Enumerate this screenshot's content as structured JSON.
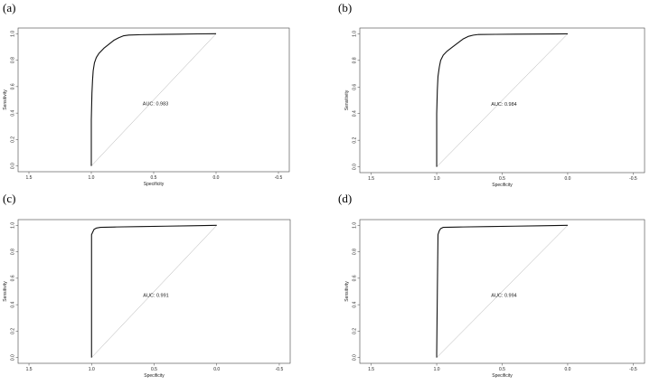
{
  "chart_data": [
    {
      "panel": "(a)",
      "type": "line",
      "xlabel": "Specificity",
      "ylabel": "Sensitivity",
      "xlim": [
        1.5,
        -0.5
      ],
      "ylim": [
        0.0,
        1.0
      ],
      "xticks": [
        "1.5",
        "1.0",
        "0.5",
        "0.0",
        "-0.5"
      ],
      "yticks": [
        "0.0",
        "0.2",
        "0.4",
        "0.6",
        "0.8",
        "1.0"
      ],
      "annotation": "AUC: 0.983",
      "diagonal": true,
      "roc": {
        "specificity": [
          1.0,
          1.0,
          0.995,
          0.99,
          0.985,
          0.975,
          0.96,
          0.94,
          0.9,
          0.86,
          0.82,
          0.78,
          0.74,
          0.7,
          0.6,
          0.45,
          0.3,
          0.15,
          0.0
        ],
        "sensitivity": [
          0.0,
          0.35,
          0.55,
          0.65,
          0.72,
          0.78,
          0.82,
          0.85,
          0.89,
          0.92,
          0.95,
          0.97,
          0.985,
          0.99,
          0.993,
          0.995,
          0.997,
          0.999,
          1.0
        ]
      }
    },
    {
      "panel": "(b)",
      "type": "line",
      "xlabel": "Specificity",
      "ylabel": "Sensitivity",
      "xlim": [
        1.5,
        -0.5
      ],
      "ylim": [
        0.0,
        1.0
      ],
      "xticks": [
        "1.5",
        "1.0",
        "0.5",
        "0.0",
        "-0.5"
      ],
      "yticks": [
        "0.0",
        "0.2",
        "0.4",
        "0.6",
        "0.8",
        "1.0"
      ],
      "annotation": "AUC: 0.984",
      "diagonal": true,
      "roc": {
        "specificity": [
          1.0,
          1.0,
          0.995,
          0.99,
          0.98,
          0.97,
          0.95,
          0.92,
          0.88,
          0.84,
          0.8,
          0.76,
          0.72,
          0.68,
          0.55,
          0.4,
          0.25,
          0.1,
          0.0
        ],
        "sensitivity": [
          0.0,
          0.4,
          0.58,
          0.68,
          0.75,
          0.8,
          0.84,
          0.87,
          0.9,
          0.93,
          0.96,
          0.98,
          0.99,
          0.995,
          0.996,
          0.997,
          0.998,
          0.999,
          1.0
        ]
      }
    },
    {
      "panel": "(c)",
      "type": "line",
      "xlabel": "Specificity",
      "ylabel": "Sensitivity",
      "xlim": [
        1.5,
        -0.5
      ],
      "ylim": [
        0.0,
        1.0
      ],
      "xticks": [
        "1.5",
        "1.0",
        "0.5",
        "0.0",
        "-0.5"
      ],
      "yticks": [
        "0.0",
        "0.2",
        "0.4",
        "0.6",
        "0.8",
        "1.0"
      ],
      "annotation": "AUC: 0.991",
      "diagonal": true,
      "roc": {
        "specificity": [
          1.0,
          1.0,
          0.99,
          0.98,
          0.96,
          0.93,
          0.8,
          0.6,
          0.4,
          0.2,
          0.0
        ],
        "sensitivity": [
          0.0,
          0.93,
          0.95,
          0.97,
          0.98,
          0.985,
          0.988,
          0.991,
          0.994,
          0.997,
          1.0
        ]
      }
    },
    {
      "panel": "(d)",
      "type": "line",
      "xlabel": "Specificity",
      "ylabel": "Sensitivity",
      "xlim": [
        1.5,
        -0.5
      ],
      "ylim": [
        0.0,
        1.0
      ],
      "xticks": [
        "1.5",
        "1.0",
        "0.5",
        "0.0",
        "-0.5"
      ],
      "yticks": [
        "0.0",
        "0.2",
        "0.4",
        "0.6",
        "0.8",
        "1.0"
      ],
      "annotation": "AUC: 0.994",
      "diagonal": true,
      "roc": {
        "specificity": [
          1.0,
          1.0,
          0.995,
          0.99,
          0.98,
          0.97,
          0.95,
          0.8,
          0.6,
          0.4,
          0.2,
          0.0
        ],
        "sensitivity": [
          0.0,
          0.03,
          0.5,
          0.93,
          0.96,
          0.975,
          0.985,
          0.988,
          0.991,
          0.994,
          0.997,
          1.0
        ]
      }
    }
  ]
}
